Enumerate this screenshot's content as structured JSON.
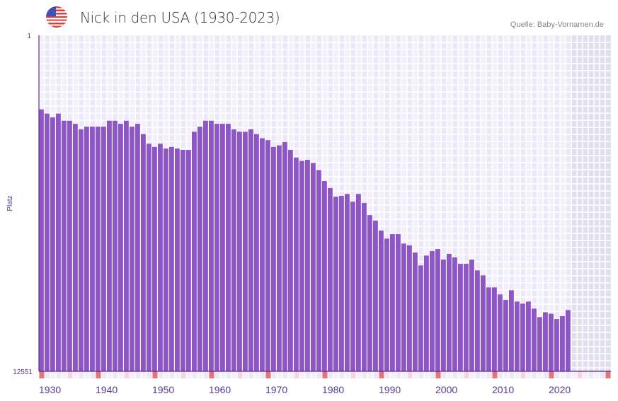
{
  "header": {
    "title": "Nick in den USA (1930-2023)",
    "source": "Quelle: Baby-Vornamen.de",
    "flag_icon": "usa-flag-icon"
  },
  "colors": {
    "bar": "#8e55c7",
    "axis": "#5b2d91",
    "grid_a": "#f3f0fb",
    "grid_b": "#ece8f8",
    "future": "#e3dfee",
    "decade_marker": "#e57373",
    "halfdecade_marker": "#f5d5dd",
    "label": "#5b3a8c"
  },
  "chart_data": {
    "type": "bar",
    "title": "Nick in den USA (1930-2023)",
    "xlabel": "",
    "ylabel": "Platz",
    "y_scale": "log",
    "y_inverted": true,
    "ylim": [
      1,
      12551
    ],
    "y_tick_labels": [
      "1",
      "12551"
    ],
    "xlim": [
      1930,
      2030
    ],
    "x_tick_labels": [
      "1930",
      "1940",
      "1950",
      "1960",
      "1970",
      "1980",
      "1990",
      "2000",
      "2010",
      "2020"
    ],
    "grid": true,
    "years": [
      1930,
      1931,
      1932,
      1933,
      1934,
      1935,
      1936,
      1937,
      1938,
      1939,
      1940,
      1941,
      1942,
      1943,
      1944,
      1945,
      1946,
      1947,
      1948,
      1949,
      1950,
      1951,
      1952,
      1953,
      1954,
      1955,
      1956,
      1957,
      1958,
      1959,
      1960,
      1961,
      1962,
      1963,
      1964,
      1965,
      1966,
      1967,
      1968,
      1969,
      1970,
      1971,
      1972,
      1973,
      1974,
      1975,
      1976,
      1977,
      1978,
      1979,
      1980,
      1981,
      1982,
      1983,
      1984,
      1985,
      1986,
      1987,
      1988,
      1989,
      1990,
      1991,
      1992,
      1993,
      1994,
      1995,
      1996,
      1997,
      1998,
      1999,
      2000,
      2001,
      2002,
      2003,
      2004,
      2005,
      2006,
      2007,
      2008,
      2009,
      2010,
      2011,
      2012,
      2013,
      2014,
      2015,
      2016,
      2017,
      2018,
      2019,
      2020,
      2021,
      2022,
      2023
    ],
    "values": [
      8,
      9,
      10,
      9,
      11,
      11,
      12,
      14,
      13,
      13,
      13,
      13,
      11,
      11,
      12,
      11,
      13,
      12,
      16,
      21,
      23,
      21,
      24,
      23,
      24,
      25,
      25,
      15,
      13,
      11,
      11,
      12,
      12,
      12,
      14,
      15,
      15,
      14,
      16,
      18,
      19,
      23,
      22,
      20,
      25,
      31,
      34,
      33,
      36,
      44,
      60,
      73,
      93,
      91,
      86,
      107,
      86,
      111,
      156,
      182,
      241,
      302,
      266,
      266,
      347,
      365,
      446,
      641,
      486,
      429,
      404,
      544,
      464,
      512,
      613,
      613,
      544,
      737,
      847,
      1188,
      1188,
      1449,
      1690,
      1286,
      1769,
      1877,
      1769,
      2158,
      2739,
      2390,
      2489,
      2884,
      2663,
      2246
    ]
  }
}
